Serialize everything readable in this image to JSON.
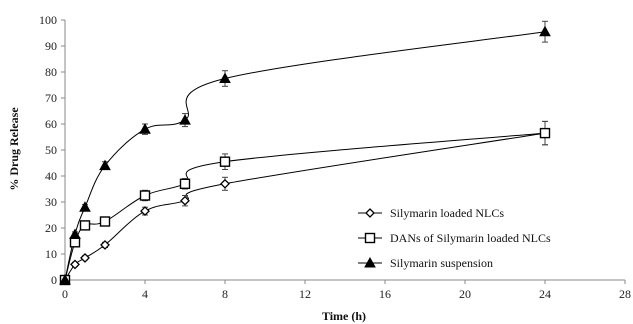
{
  "chart_data": {
    "type": "line",
    "xlabel": "Time (h)",
    "ylabel": "% Drug Release",
    "xlim": [
      0,
      28
    ],
    "ylim": [
      0,
      100
    ],
    "xticks": [
      0,
      4,
      8,
      12,
      16,
      20,
      24,
      28
    ],
    "yticks": [
      0,
      10,
      20,
      30,
      40,
      50,
      60,
      70,
      80,
      90,
      100
    ],
    "grid": false,
    "legend_position": "right-bottom",
    "series": [
      {
        "name": "Silymarin loaded NLCs",
        "marker": "diamond-open",
        "color": "#000000",
        "x": [
          0,
          0.5,
          1,
          2,
          4,
          6,
          8,
          24
        ],
        "y": [
          0,
          6,
          8.5,
          13.5,
          26.5,
          30.5,
          37,
          56.5
        ],
        "err": [
          0,
          0.8,
          0.8,
          1,
          1.5,
          2,
          2.5,
          4.5
        ]
      },
      {
        "name": "DANs of Silymarin loaded NLCs",
        "marker": "square-open",
        "color": "#000000",
        "x": [
          0,
          0.5,
          1,
          2,
          4,
          6,
          8,
          24
        ],
        "y": [
          0,
          14.5,
          21,
          22.5,
          32.5,
          37,
          45.5,
          56.5
        ],
        "err": [
          0,
          1,
          1,
          1,
          2,
          2,
          3,
          4.5
        ]
      },
      {
        "name": "Silymarin suspension",
        "marker": "triangle-filled",
        "color": "#000000",
        "x": [
          0,
          0.5,
          1,
          2,
          4,
          6,
          8,
          24
        ],
        "y": [
          0,
          17.5,
          28,
          44,
          58,
          61.5,
          77.5,
          95.5
        ],
        "err": [
          0,
          1,
          1,
          1.5,
          2,
          2.5,
          3,
          4
        ]
      }
    ]
  }
}
